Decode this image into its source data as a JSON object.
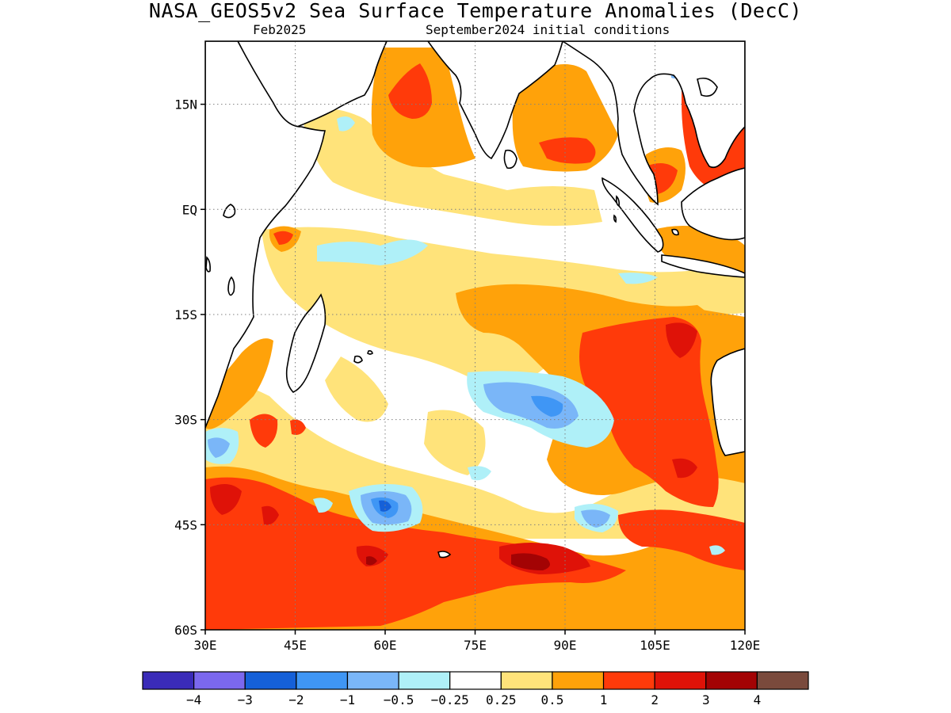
{
  "title": "NASA_GEOS5v2 Sea Surface Temperature Anomalies (DecC)",
  "subtitle_left": "Feb2025",
  "subtitle_right": "September2024 initial conditions",
  "map": {
    "region": "Indian Ocean",
    "lon_range": [
      30,
      120
    ],
    "lat_range": [
      -60,
      24
    ],
    "grid": true,
    "lat_ticks": [
      {
        "value": 15,
        "label": "15N"
      },
      {
        "value": 0,
        "label": "EQ"
      },
      {
        "value": -15,
        "label": "15S"
      },
      {
        "value": -30,
        "label": "30S"
      },
      {
        "value": -45,
        "label": "45S"
      },
      {
        "value": -60,
        "label": "60S"
      }
    ],
    "lon_ticks": [
      {
        "value": 30,
        "label": "30E"
      },
      {
        "value": 45,
        "label": "45E"
      },
      {
        "value": 60,
        "label": "60E"
      },
      {
        "value": 75,
        "label": "75E"
      },
      {
        "value": 90,
        "label": "90E"
      },
      {
        "value": 105,
        "label": "105E"
      },
      {
        "value": 120,
        "label": "120E"
      }
    ]
  },
  "colorbar": {
    "colors": [
      "#3a2bb8",
      "#7b68ee",
      "#1560d8",
      "#3f96f5",
      "#7ab6f8",
      "#aff0f8",
      "#ffffff",
      "#ffe37a",
      "#ffa20a",
      "#ff3a0a",
      "#df1208",
      "#a30304",
      "#7a4a3c"
    ],
    "labels": [
      "−4",
      "−3",
      "−2",
      "−1",
      "−0.5",
      "−0.25",
      "0.25",
      "0.5",
      "1",
      "2",
      "3",
      "4"
    ]
  },
  "anomaly_fields": [
    {
      "level": 0.5,
      "color": "#ffe37a",
      "region": "central Indian Ocean band 10S-20S",
      "lon": [
        65,
        110
      ],
      "lat": [
        -22,
        -8
      ]
    },
    {
      "level": 1,
      "color": "#ffa20a",
      "region": "Arabian Sea",
      "lon": [
        56,
        68
      ],
      "lat": [
        8,
        22
      ]
    },
    {
      "level": 1,
      "color": "#ffa20a",
      "region": "Bay of Bengal",
      "lon": [
        82,
        94
      ],
      "lat": [
        8,
        22
      ]
    },
    {
      "level": 2,
      "color": "#ff3a0a",
      "region": "South China Sea",
      "lon": [
        108,
        120
      ],
      "lat": [
        0,
        20
      ]
    },
    {
      "level": 2,
      "color": "#ff3a0a",
      "region": "off Western Australia",
      "lon": [
        96,
        116
      ],
      "lat": [
        -40,
        -15
      ]
    },
    {
      "level": 2,
      "color": "#ff3a0a",
      "region": "Southern Ocean band",
      "lon": [
        30,
        115
      ],
      "lat": [
        -60,
        -42
      ]
    },
    {
      "level": 4,
      "color": "#a30304",
      "region": "Southern Ocean maximum",
      "lon": [
        82,
        90
      ],
      "lat": [
        -51,
        -49
      ]
    },
    {
      "level": -1,
      "color": "#7ab6f8",
      "region": "subtropical south Indian Ocean",
      "lon": [
        78,
        92
      ],
      "lat": [
        -33,
        -24
      ]
    },
    {
      "level": -2,
      "color": "#1560d8",
      "region": "south of Madagascar",
      "lon": [
        57,
        65
      ],
      "lat": [
        -45,
        -41
      ]
    }
  ]
}
